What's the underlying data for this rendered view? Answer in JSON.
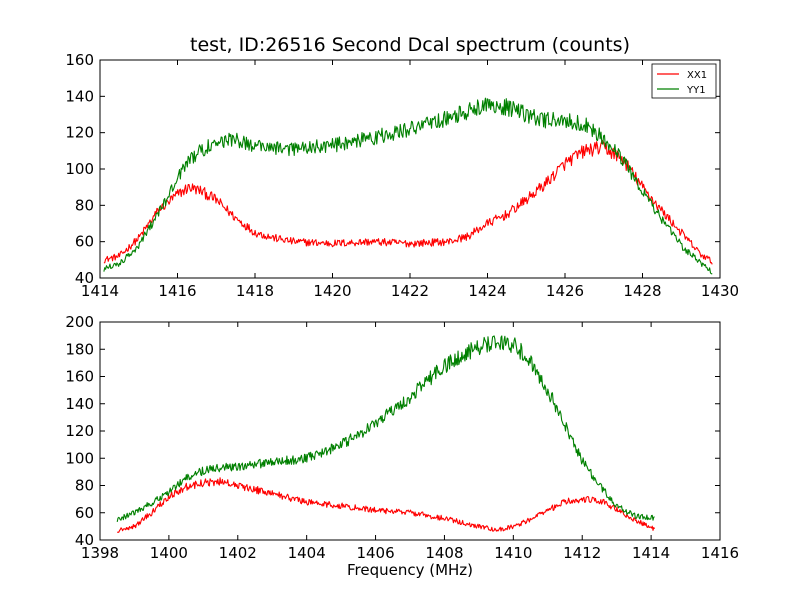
{
  "figure": {
    "title": "test, ID:26516 Second Dcal spectrum (counts)",
    "xlabel": "Frequency (MHz)"
  },
  "chart_data": [
    {
      "type": "line",
      "title": "test, ID:26516 Second Dcal spectrum (counts)",
      "xlabel": "",
      "ylabel": "",
      "xlim": [
        1414,
        1430
      ],
      "ylim": [
        40,
        160
      ],
      "xticks": [
        1414,
        1416,
        1418,
        1420,
        1422,
        1424,
        1426,
        1428,
        1430
      ],
      "yticks": [
        40,
        60,
        80,
        100,
        120,
        140,
        160
      ],
      "legend": {
        "position": "top-right",
        "entries": [
          "XX1",
          "YY1"
        ]
      },
      "grid": false,
      "series": [
        {
          "name": "XX1",
          "color": "#ff0000",
          "x": [
            1414.1,
            1414.5,
            1415.0,
            1415.5,
            1416.0,
            1416.3,
            1416.6,
            1417.0,
            1417.5,
            1418.0,
            1418.5,
            1419.0,
            1420.0,
            1421.0,
            1422.0,
            1423.0,
            1423.5,
            1424.0,
            1424.5,
            1425.0,
            1425.5,
            1426.0,
            1426.5,
            1427.0,
            1427.5,
            1428.0,
            1428.5,
            1429.0,
            1429.5,
            1429.8
          ],
          "y": [
            50,
            52,
            62,
            77,
            86,
            90,
            88,
            83,
            73,
            65,
            62,
            60,
            59,
            60,
            59,
            60,
            63,
            70,
            75,
            83,
            92,
            103,
            110,
            112,
            105,
            90,
            77,
            65,
            53,
            49
          ]
        },
        {
          "name": "YY1",
          "color": "#008000",
          "x": [
            1414.1,
            1414.5,
            1415.0,
            1415.5,
            1416.0,
            1416.3,
            1416.6,
            1417.0,
            1417.5,
            1418.0,
            1418.5,
            1419.0,
            1420.0,
            1421.0,
            1422.0,
            1423.0,
            1423.5,
            1424.0,
            1424.5,
            1425.0,
            1425.5,
            1426.0,
            1426.5,
            1427.0,
            1427.5,
            1428.0,
            1428.5,
            1429.0,
            1429.5,
            1429.8
          ],
          "y": [
            45,
            48,
            58,
            75,
            95,
            105,
            110,
            115,
            116,
            113,
            112,
            111,
            113,
            117,
            122,
            128,
            132,
            136,
            134,
            130,
            127,
            127,
            125,
            117,
            105,
            88,
            72,
            58,
            48,
            43
          ]
        }
      ]
    },
    {
      "type": "line",
      "title": "",
      "xlabel": "Frequency (MHz)",
      "ylabel": "",
      "xlim": [
        1398,
        1416
      ],
      "ylim": [
        40,
        200
      ],
      "xticks": [
        1398,
        1400,
        1402,
        1404,
        1406,
        1408,
        1410,
        1412,
        1414,
        1416
      ],
      "yticks": [
        40,
        60,
        80,
        100,
        120,
        140,
        160,
        180,
        200
      ],
      "grid": false,
      "series": [
        {
          "color": "#ff0000",
          "x": [
            1398.5,
            1399.0,
            1399.5,
            1400.0,
            1400.5,
            1401.0,
            1401.5,
            1402.0,
            1403.0,
            1404.0,
            1405.0,
            1406.0,
            1407.0,
            1408.0,
            1409.0,
            1409.5,
            1410.0,
            1410.5,
            1411.0,
            1411.5,
            1412.0,
            1412.5,
            1413.0,
            1413.5,
            1414.1
          ],
          "y": [
            47,
            50,
            60,
            72,
            79,
            82,
            83,
            80,
            74,
            68,
            65,
            62,
            60,
            56,
            50,
            47,
            50,
            55,
            62,
            68,
            70,
            69,
            63,
            55,
            48
          ]
        },
        {
          "color": "#008000",
          "x": [
            1398.5,
            1399.0,
            1399.5,
            1400.0,
            1400.5,
            1401.0,
            1401.5,
            1402.0,
            1403.0,
            1404.0,
            1405.0,
            1406.0,
            1407.0,
            1408.0,
            1408.5,
            1409.0,
            1409.5,
            1410.0,
            1410.5,
            1411.0,
            1411.5,
            1412.0,
            1412.5,
            1413.0,
            1413.5,
            1414.1
          ],
          "y": [
            55,
            60,
            67,
            75,
            85,
            91,
            93,
            94,
            97,
            100,
            110,
            125,
            145,
            168,
            176,
            182,
            187,
            183,
            172,
            150,
            125,
            98,
            80,
            65,
            58,
            56
          ]
        }
      ]
    }
  ]
}
